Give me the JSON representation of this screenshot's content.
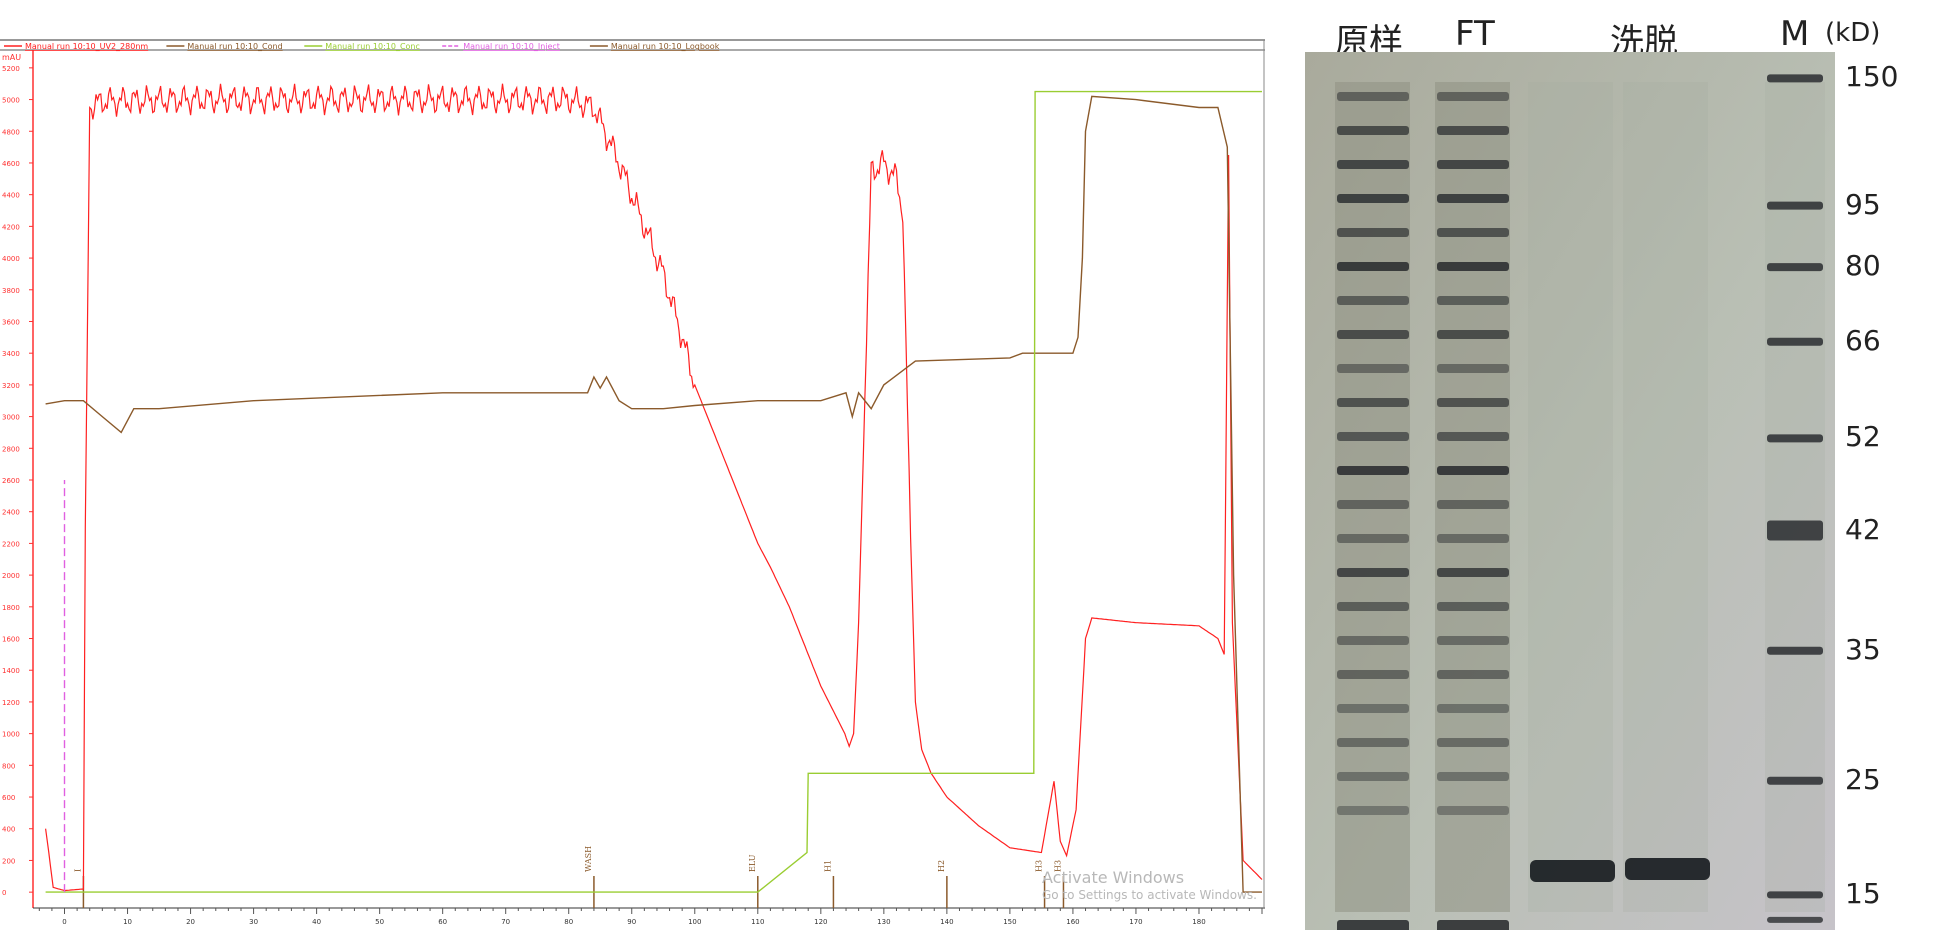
{
  "chart_data": [
    {
      "type": "line",
      "ylabel": "mAU",
      "legend": [
        {
          "name": "Manual run 10:10_UV2_280nm",
          "color": "#ff2020"
        },
        {
          "name": "Manual run 10:10_Cond",
          "color": "#8b5a2b"
        },
        {
          "name": "Manual run 10:10_Conc",
          "color": "#9acd32"
        },
        {
          "name": "Manual run 10:10_Inject",
          "color": "#e060e0"
        },
        {
          "name": "Manual run 10:10_Logbook",
          "color": "#8b5a2b"
        }
      ],
      "legend_position": "top",
      "xlim": [
        -5,
        190
      ],
      "ylim": [
        -100,
        5300
      ],
      "x_ticks": [
        0,
        10,
        20,
        30,
        40,
        50,
        60,
        70,
        80,
        90,
        100,
        110,
        120,
        130,
        140,
        150,
        160,
        170,
        180
      ],
      "y_ticks": [
        0,
        200,
        400,
        600,
        800,
        1000,
        1200,
        1400,
        1600,
        1800,
        2000,
        2200,
        2400,
        2600,
        2800,
        3000,
        3200,
        3400,
        3600,
        3800,
        4000,
        4200,
        4400,
        4600,
        4800,
        5000,
        5200
      ],
      "series": [
        {
          "name": "Manual run 10:10_UV2_280nm",
          "x": [
            -3,
            -2.5,
            -1.8,
            0,
            3.0,
            3.3,
            4.0,
            6,
            20,
            40,
            60,
            80,
            84,
            88,
            92,
            95,
            98,
            100,
            103,
            106,
            110,
            112,
            115,
            120,
            123.8,
            124.5,
            125.2,
            126,
            128,
            130,
            132,
            133,
            134,
            135,
            136,
            137.5,
            140,
            145,
            150,
            155,
            157,
            158,
            159,
            160.5,
            162,
            163,
            170,
            180,
            183,
            184,
            184.7,
            185.3,
            187,
            190
          ],
          "y": [
            400,
            250,
            30,
            10,
            20,
            2300,
            4950,
            4990,
            5000,
            5000,
            5000,
            5000,
            4950,
            4600,
            4200,
            3900,
            3500,
            3200,
            2900,
            2600,
            2200,
            2050,
            1800,
            1300,
            1000,
            920,
            1000,
            1700,
            4550,
            4600,
            4500,
            4300,
            2600,
            1200,
            900,
            750,
            600,
            420,
            280,
            250,
            700,
            320,
            230,
            520,
            1600,
            1730,
            1700,
            1680,
            1600,
            1500,
            4650,
            1700,
            200,
            80
          ]
        },
        {
          "name": "Manual run 10:10_Cond",
          "x": [
            -3,
            0,
            3,
            6,
            9,
            11,
            15,
            30,
            60,
            83,
            84,
            85,
            86,
            88,
            90,
            95,
            100,
            110,
            120,
            124,
            125,
            126,
            128,
            130,
            135,
            150,
            152,
            155,
            160,
            160.8,
            161.5,
            162,
            163,
            170,
            180,
            183,
            184.5,
            185.5,
            187,
            190
          ],
          "y": [
            3080,
            3100,
            3100,
            3000,
            2900,
            3050,
            3050,
            3100,
            3150,
            3150,
            3250,
            3180,
            3250,
            3100,
            3050,
            3050,
            3070,
            3100,
            3100,
            3150,
            3000,
            3150,
            3050,
            3200,
            3350,
            3370,
            3400,
            3400,
            3400,
            3500,
            4000,
            4800,
            5020,
            5000,
            4950,
            4950,
            4700,
            2000,
            0,
            0
          ]
        },
        {
          "name": "Manual run 10:10_Conc",
          "x": [
            -3,
            110,
            117.8,
            118,
            153.8,
            154,
            190
          ],
          "y": [
            0,
            0,
            250,
            750,
            750,
            5050,
            5050
          ]
        },
        {
          "name": "Manual run 10:10_Inject",
          "x": [
            0,
            0
          ],
          "y": [
            0,
            2600
          ]
        }
      ],
      "logbook_marks": [
        {
          "x": 3,
          "label": "I"
        },
        {
          "x": 84,
          "label": "WASH"
        },
        {
          "x": 110,
          "label": "ELU"
        },
        {
          "x": 122,
          "label": "H1"
        },
        {
          "x": 140,
          "label": "H2"
        },
        {
          "x": 155.5,
          "label": "H3"
        },
        {
          "x": 158.5,
          "label": "H3"
        }
      ]
    }
  ],
  "gel": {
    "lanes": [
      "原样",
      "FT",
      "洗脱",
      "M"
    ],
    "unit": "(kD)",
    "markers": [
      {
        "kd": "150",
        "rel_y": 0.03
      },
      {
        "kd": "95",
        "rel_y": 0.175
      },
      {
        "kd": "80",
        "rel_y": 0.245
      },
      {
        "kd": "66",
        "rel_y": 0.33
      },
      {
        "kd": "52",
        "rel_y": 0.44
      },
      {
        "kd": "42",
        "rel_y": 0.545
      },
      {
        "kd": "35",
        "rel_y": 0.682
      },
      {
        "kd": "25",
        "rel_y": 0.83
      },
      {
        "kd": "15",
        "rel_y": 0.96
      }
    ],
    "band_intensity": {
      "sample": [
        0.55,
        0.75,
        0.8,
        0.85,
        0.7,
        0.9,
        0.6,
        0.75,
        0.5,
        0.7,
        0.65,
        0.9,
        0.55,
        0.5,
        0.8,
        0.6,
        0.5,
        0.55,
        0.45,
        0.5,
        0.45,
        0.4,
        0.9
      ],
      "elution": [
        0.95
      ]
    }
  },
  "watermark": {
    "line1": "Activate Windows",
    "line2": "Go to Settings to activate Windows."
  }
}
